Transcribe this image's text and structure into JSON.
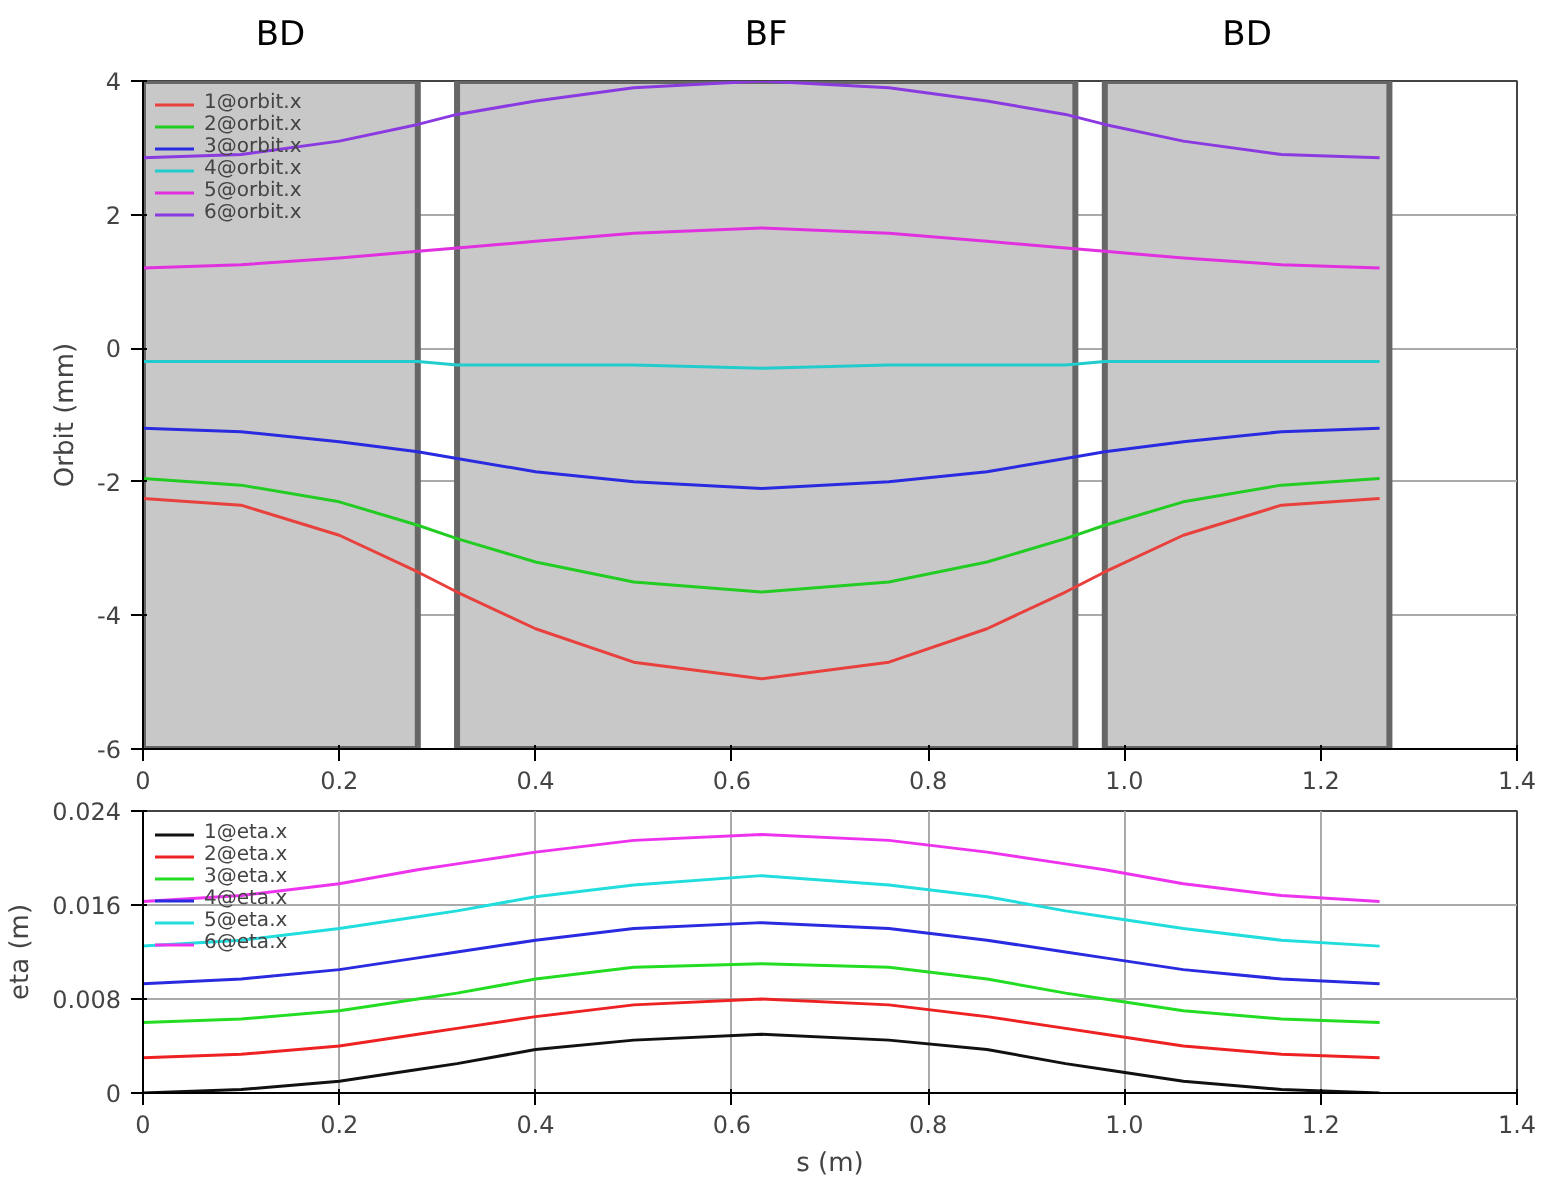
{
  "chart_data": [
    {
      "type": "line",
      "ylabel": "Orbit (mm)",
      "x": [
        0,
        0.1,
        0.2,
        0.28,
        0.32,
        0.4,
        0.5,
        0.63,
        0.76,
        0.86,
        0.94,
        0.98,
        1.06,
        1.16,
        1.26
      ],
      "series": [
        {
          "name": "1@orbit.x",
          "color": "#e8403c",
          "values": [
            -2.25,
            -2.35,
            -2.8,
            -3.35,
            -3.65,
            -4.2,
            -4.7,
            -4.95,
            -4.7,
            -4.2,
            -3.65,
            -3.35,
            -2.8,
            -2.35,
            -2.25
          ]
        },
        {
          "name": "2@orbit.x",
          "color": "#22cc22",
          "values": [
            -1.95,
            -2.05,
            -2.3,
            -2.65,
            -2.85,
            -3.2,
            -3.5,
            -3.65,
            -3.5,
            -3.2,
            -2.85,
            -2.65,
            -2.3,
            -2.05,
            -1.95
          ]
        },
        {
          "name": "3@orbit.x",
          "color": "#2a2ae0",
          "values": [
            -1.2,
            -1.25,
            -1.4,
            -1.55,
            -1.65,
            -1.85,
            -2.0,
            -2.1,
            -2.0,
            -1.85,
            -1.65,
            -1.55,
            -1.4,
            -1.25,
            -1.2
          ]
        },
        {
          "name": "4@orbit.x",
          "color": "#22cccc",
          "values": [
            -0.2,
            -0.2,
            -0.2,
            -0.2,
            -0.25,
            -0.25,
            -0.25,
            -0.3,
            -0.25,
            -0.25,
            -0.25,
            -0.2,
            -0.2,
            -0.2,
            -0.2
          ]
        },
        {
          "name": "5@orbit.x",
          "color": "#e030e0",
          "values": [
            1.2,
            1.25,
            1.35,
            1.45,
            1.5,
            1.6,
            1.72,
            1.8,
            1.72,
            1.6,
            1.5,
            1.45,
            1.35,
            1.25,
            1.2
          ]
        },
        {
          "name": "6@orbit.x",
          "color": "#8a3ae0",
          "values": [
            2.85,
            2.9,
            3.1,
            3.35,
            3.5,
            3.7,
            3.9,
            4.0,
            3.9,
            3.7,
            3.5,
            3.35,
            3.1,
            2.9,
            2.85
          ]
        }
      ],
      "xlim": [
        0,
        1.4
      ],
      "xticks": [
        0,
        0.2,
        0.4,
        0.6,
        0.8,
        {
          "value": 1,
          "label": "1.0"
        },
        1.2,
        1.4
      ],
      "ylim": [
        -6,
        4
      ],
      "yticks": [
        -6,
        -4,
        -2,
        0,
        2,
        4
      ],
      "bands": [
        {
          "axis": "x",
          "from": 0,
          "to": 0.28,
          "label": "BD",
          "color": "#c8c8c8"
        },
        {
          "axis": "x",
          "from": 0.32,
          "to": 0.95,
          "label": "BF",
          "color": "#c8c8c8"
        },
        {
          "axis": "x",
          "from": 0.98,
          "to": 1.27,
          "label": "BD",
          "color": "#c8c8c8"
        }
      ],
      "grid": true,
      "legend": "top left"
    },
    {
      "type": "line",
      "xlabel": "s (m)",
      "ylabel": "eta (m)",
      "x": [
        0,
        0.1,
        0.2,
        0.28,
        0.32,
        0.4,
        0.5,
        0.63,
        0.76,
        0.86,
        0.94,
        0.98,
        1.06,
        1.16,
        1.26
      ],
      "series": [
        {
          "name": "1@eta.x",
          "color": "#111111",
          "values": [
            0,
            0.0003,
            0.001,
            0.002,
            0.0025,
            0.0037,
            0.0045,
            0.005,
            0.0045,
            0.0037,
            0.0025,
            0.002,
            0.001,
            0.0003,
            0
          ]
        },
        {
          "name": "2@eta.x",
          "color": "#ee2222",
          "values": [
            0.003,
            0.0033,
            0.004,
            0.005,
            0.0055,
            0.0065,
            0.0075,
            0.008,
            0.0075,
            0.0065,
            0.0055,
            0.005,
            0.004,
            0.0033,
            0.003
          ]
        },
        {
          "name": "3@eta.x",
          "color": "#22dd22",
          "values": [
            0.006,
            0.0063,
            0.007,
            0.008,
            0.0085,
            0.0097,
            0.0107,
            0.011,
            0.0107,
            0.0097,
            0.0085,
            0.008,
            0.007,
            0.0063,
            0.006
          ]
        },
        {
          "name": "4@eta.x",
          "color": "#2a2ae0",
          "values": [
            0.0093,
            0.0097,
            0.0105,
            0.0115,
            0.012,
            0.013,
            0.014,
            0.0145,
            0.014,
            0.013,
            0.012,
            0.0115,
            0.0105,
            0.0097,
            0.0093
          ]
        },
        {
          "name": "5@eta.x",
          "color": "#22dddd",
          "values": [
            0.0125,
            0.013,
            0.014,
            0.015,
            0.0155,
            0.0167,
            0.0177,
            0.0185,
            0.0177,
            0.0167,
            0.0155,
            0.015,
            0.014,
            0.013,
            0.0125
          ]
        },
        {
          "name": "6@eta.x",
          "color": "#ee33ee",
          "values": [
            0.0163,
            0.0168,
            0.0178,
            0.019,
            0.0195,
            0.0205,
            0.0215,
            0.022,
            0.0215,
            0.0205,
            0.0195,
            0.019,
            0.0178,
            0.0168,
            0.0163
          ]
        }
      ],
      "xlim": [
        0,
        1.4
      ],
      "xticks": [
        0,
        0.2,
        0.4,
        0.6,
        0.8,
        {
          "value": 1,
          "label": "1.0"
        },
        1.2,
        1.4
      ],
      "ylim": [
        0,
        0.024
      ],
      "yticks": [
        0,
        0.008,
        0.016,
        0.024
      ],
      "grid": true,
      "legend": "top left"
    }
  ]
}
